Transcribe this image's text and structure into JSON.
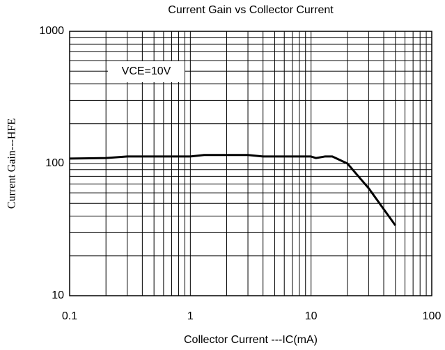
{
  "chart_data": {
    "type": "line",
    "title": "Current Gain vs Collector Current",
    "x_label": "Collector Current ---IC(mA)",
    "y_label": "Current Gain---HFE",
    "annotations": [
      "VCE=10V"
    ],
    "x": [
      0.1,
      0.2,
      0.3,
      1,
      1.3,
      3,
      4,
      10,
      11,
      13,
      15,
      20,
      30,
      50
    ],
    "series": [
      {
        "name": "HFE",
        "color": "#000000",
        "values": [
          109,
          110,
          113,
          113,
          116,
          116,
          113,
          113,
          110,
          113,
          113,
          100,
          65,
          34
        ]
      }
    ],
    "xlim": [
      0.1,
      100
    ],
    "xticks": [
      0.1,
      1,
      10,
      100
    ],
    "ylim": [
      10,
      1000
    ],
    "yticks": [
      10,
      100,
      1000
    ],
    "xscale": "log",
    "yscale": "log",
    "grid": true
  }
}
